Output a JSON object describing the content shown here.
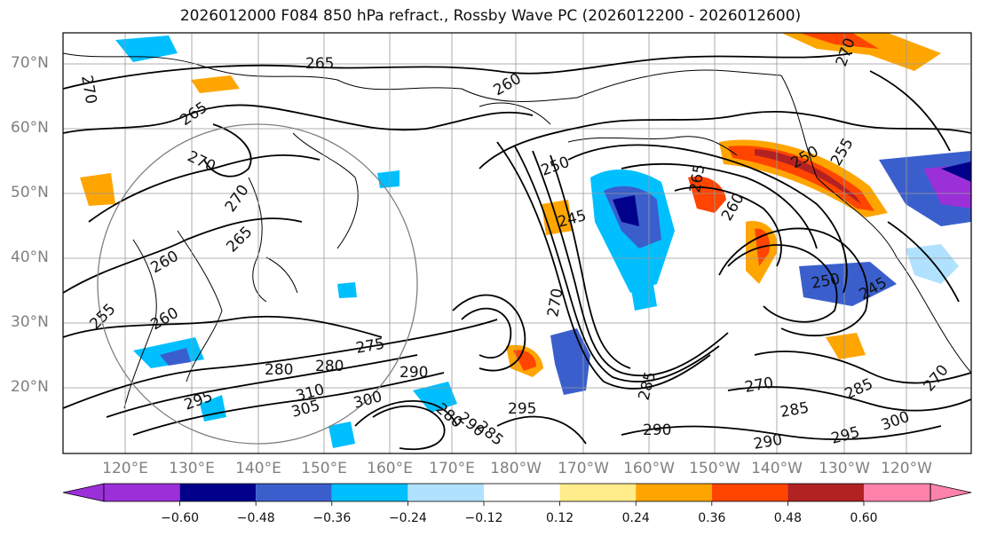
{
  "title": "2026012000 F084 850 hPa refract., Rossby Wave PC (2026012200 - 2026012600)",
  "latitude_labels": [
    "70°N",
    "60°N",
    "50°N",
    "40°N",
    "30°N",
    "20°N"
  ],
  "longitude_labels": [
    "120°E",
    "130°E",
    "140°E",
    "150°E",
    "160°E",
    "170°E",
    "180°W",
    "170°W",
    "160°W",
    "150°W",
    "140°W",
    "130°W",
    "120°W"
  ],
  "contour_labels": [
    "265",
    "260",
    "265",
    "270",
    "270",
    "265",
    "260",
    "255",
    "250",
    "245",
    "270",
    "280",
    "275",
    "280",
    "290",
    "295",
    "310",
    "305",
    "300",
    "280",
    "290",
    "285",
    "295",
    "270",
    "285",
    "290",
    "290",
    "295",
    "300",
    "270",
    "285",
    "255",
    "250",
    "250",
    "245",
    "260",
    "265",
    "270",
    "270",
    "260",
    "285"
  ],
  "colorbar": {
    "ticks": [
      "−0.60",
      "−0.48",
      "−0.36",
      "−0.24",
      "−0.12",
      "0.12",
      "0.24",
      "0.36",
      "0.48",
      "0.60"
    ],
    "colors": [
      "#9b30d9",
      "#00008b",
      "#3a5fcd",
      "#00bfff",
      "#b0e2ff",
      "#ffffff",
      "#ffec8b",
      "#ffa500",
      "#ff4500",
      "#b22222",
      "#ff82ab"
    ]
  }
}
